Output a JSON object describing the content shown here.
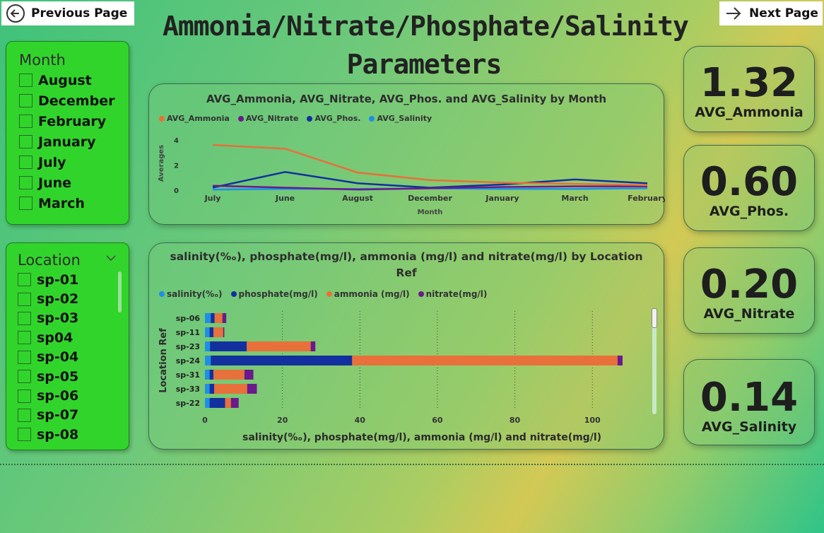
{
  "nav": {
    "prev_label": "Previous Page",
    "next_label": "Next Page"
  },
  "page_title": "Ammonia/Nitrate/Phosphate/Salinity Parameters",
  "month_slicer": {
    "title": "Month",
    "items": [
      "August",
      "December",
      "February",
      "January",
      "July",
      "June",
      "March"
    ]
  },
  "location_slicer": {
    "title": "Location",
    "items": [
      "sp-01",
      "sp-02",
      "sp-03",
      "sp04",
      "sp-04",
      "sp-05",
      "sp-06",
      "sp-07",
      "sp-08"
    ]
  },
  "kpis": [
    {
      "value": "1.32",
      "label": "AVG_Ammonia"
    },
    {
      "value": "0.60",
      "label": "AVG_Phos."
    },
    {
      "value": "0.20",
      "label": "AVG_Nitrate"
    },
    {
      "value": "0.14",
      "label": "AVG_Salinity"
    }
  ],
  "colors": {
    "ammonia": "#e8703a",
    "nitrate": "#6b1a8c",
    "phosphate": "#12309e",
    "salinity": "#1e8fe6",
    "slicer_bg": "#31d42b"
  },
  "chart_data": [
    {
      "type": "line",
      "title": "AVG_Ammonia, AVG_Nitrate, AVG_Phos. and AVG_Salinity by Month",
      "xlabel": "Month",
      "ylabel": "Averages",
      "categories": [
        "July",
        "June",
        "August",
        "December",
        "January",
        "March",
        "February"
      ],
      "yticks": [
        "0",
        "2",
        "4"
      ],
      "ylim": [
        0,
        4.5
      ],
      "legend_position": "top-left",
      "series": [
        {
          "name": "AVG_Ammonia",
          "color": "#e8703a",
          "values": [
            3.6,
            3.3,
            1.4,
            0.8,
            0.6,
            0.5,
            0.4
          ]
        },
        {
          "name": "AVG_Nitrate",
          "color": "#6b1a8c",
          "values": [
            0.35,
            0.2,
            0.05,
            0.15,
            0.25,
            0.3,
            0.3
          ]
        },
        {
          "name": "AVG_Phos.",
          "color": "#12309e",
          "values": [
            0.2,
            1.45,
            0.55,
            0.2,
            0.45,
            0.85,
            0.55
          ]
        },
        {
          "name": "AVG_Salinity",
          "color": "#1e8fe6",
          "values": [
            0.05,
            0.1,
            0.1,
            0.15,
            0.1,
            0.1,
            0.15
          ]
        }
      ]
    },
    {
      "type": "bar",
      "orientation": "horizontal",
      "stacked": true,
      "title": "salinity(%ₒ), phosphate(mg/l), ammonia (mg/l) and nitrate(mg/l) by Location Ref",
      "xlabel": "salinity(%ₒ), phosphate(mg/l), ammonia (mg/l) and nitrate(mg/l)",
      "ylabel": "Location Ref",
      "categories": [
        "sp-06",
        "sp-11",
        "sp-23",
        "sp-24",
        "sp-31",
        "sp-33",
        "sp-22"
      ],
      "xticks": [
        "0",
        "20",
        "40",
        "60",
        "80",
        "100"
      ],
      "xlim": [
        0,
        112
      ],
      "legend_position": "top-left",
      "series": [
        {
          "name": "salinity(%ₒ)",
          "color": "#1e8fe6",
          "values": [
            1.5,
            1.2,
            1.3,
            1.5,
            1.2,
            1.2,
            1.2
          ]
        },
        {
          "name": "phosphate(mg/l)",
          "color": "#12309e",
          "values": [
            1.0,
            1.0,
            9.5,
            36.5,
            1.0,
            1.2,
            4.0
          ]
        },
        {
          "name": "ammonia (mg/l)",
          "color": "#e8703a",
          "values": [
            2.0,
            2.5,
            16.5,
            68.5,
            8.0,
            8.5,
            1.5
          ]
        },
        {
          "name": "nitrate(mg/l)",
          "color": "#6b1a8c",
          "values": [
            1.0,
            0.3,
            1.2,
            1.3,
            2.3,
            2.5,
            2.0
          ]
        }
      ]
    }
  ]
}
